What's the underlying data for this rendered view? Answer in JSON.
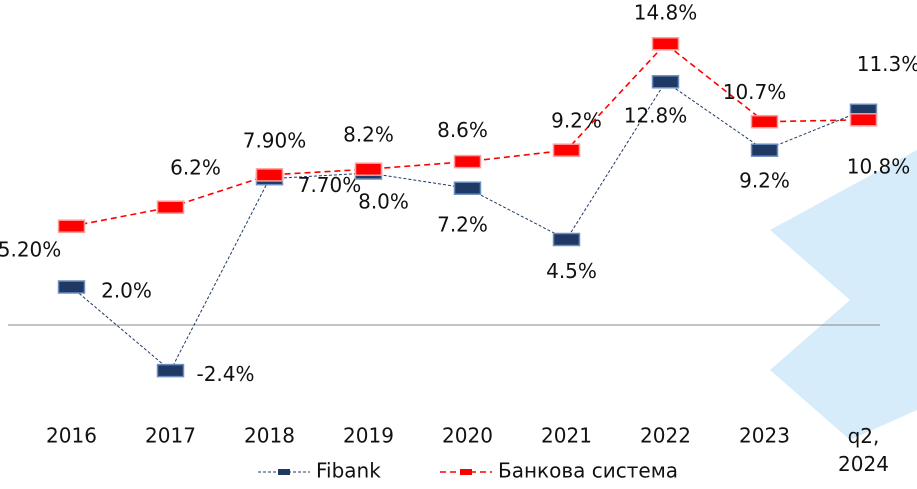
{
  "chart_data": {
    "type": "line",
    "categories": [
      "2016",
      "2017",
      "2018",
      "2019",
      "2020",
      "2021",
      "2022",
      "2023",
      "q2, 2024"
    ],
    "series": [
      {
        "name": "Fibank",
        "color": "#1f3864",
        "values": [
          2.0,
          -2.4,
          7.7,
          8.0,
          7.2,
          4.5,
          12.8,
          9.2,
          11.3
        ],
        "value_labels": [
          "2.0%",
          "-2.4%",
          "7.70%",
          "8.0%",
          "7.2%",
          "4.5%",
          "12.8%",
          "9.2%",
          "11.3%"
        ]
      },
      {
        "name": "Банкова система",
        "color": "#ff0000",
        "values": [
          5.2,
          6.2,
          7.9,
          8.2,
          8.6,
          9.2,
          14.8,
          10.7,
          10.8
        ],
        "value_labels": [
          "5.20%",
          "6.2%",
          "7.90%",
          "8.2%",
          "8.6%",
          "9.2%",
          "14.8%",
          "10.7%",
          "10.8%"
        ]
      }
    ],
    "ylim": [
      -5,
      16
    ]
  }
}
